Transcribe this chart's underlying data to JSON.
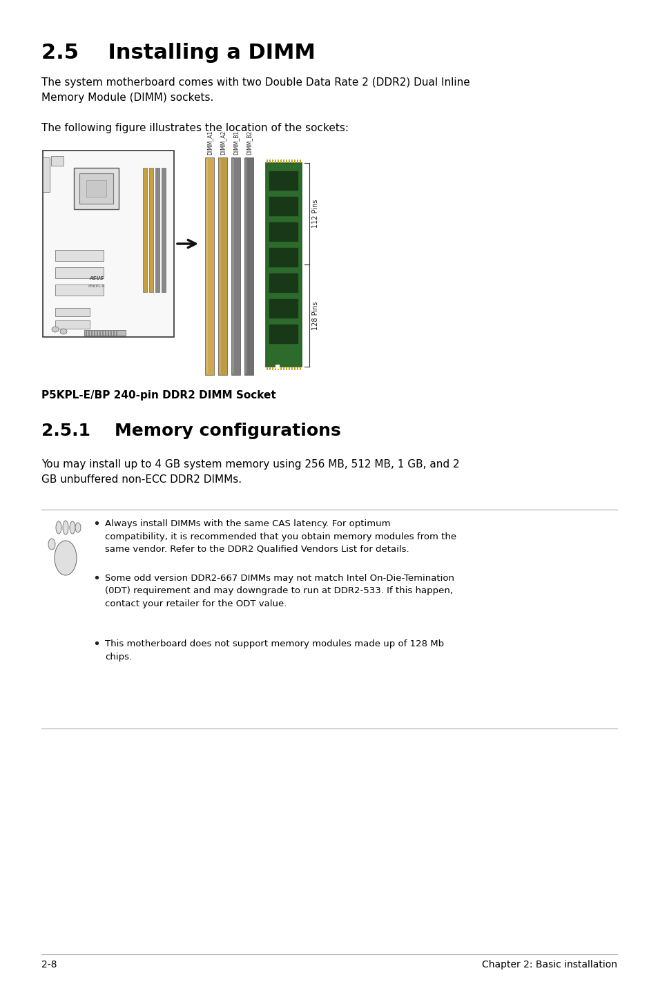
{
  "title": "2.5    Installing a DIMM",
  "body_text_1": "The system motherboard comes with two Double Data Rate 2 (DDR2) Dual Inline\nMemory Module (DIMM) sockets.",
  "body_text_2": "The following figure illustrates the location of the sockets:",
  "figure_caption": "P5KPL-E/BP 240-pin DDR2 DIMM Socket",
  "section_title": "2.5.1    Memory configurations",
  "section_body": "You may install up to 4 GB system memory using 256 MB, 512 MB, 1 GB, and 2\nGB unbuffered non-ECC DDR2 DIMMs.",
  "note_bullets": [
    "Always install DIMMs with the same CAS latency. For optimum\ncompatibility, it is recommended that you obtain memory modules from the\nsame vendor. Refer to the DDR2 Qualified Vendors List for details.",
    "Some odd version DDR2-667 DIMMs may not match Intel On-Die-Temination\n(0DT) requirement and may downgrade to run at DDR2-533. If this happen,\ncontact your retailer for the ODT value.",
    "This motherboard does not support memory modules made up of 128 Mb\nchips."
  ],
  "footer_left": "2-8",
  "footer_right": "Chapter 2: Basic installation",
  "bg_color": "#ffffff",
  "text_color": "#000000",
  "title_fontsize": 22,
  "section_title_fontsize": 18,
  "body_fontsize": 11,
  "note_fontsize": 9.5,
  "footer_fontsize": 10
}
